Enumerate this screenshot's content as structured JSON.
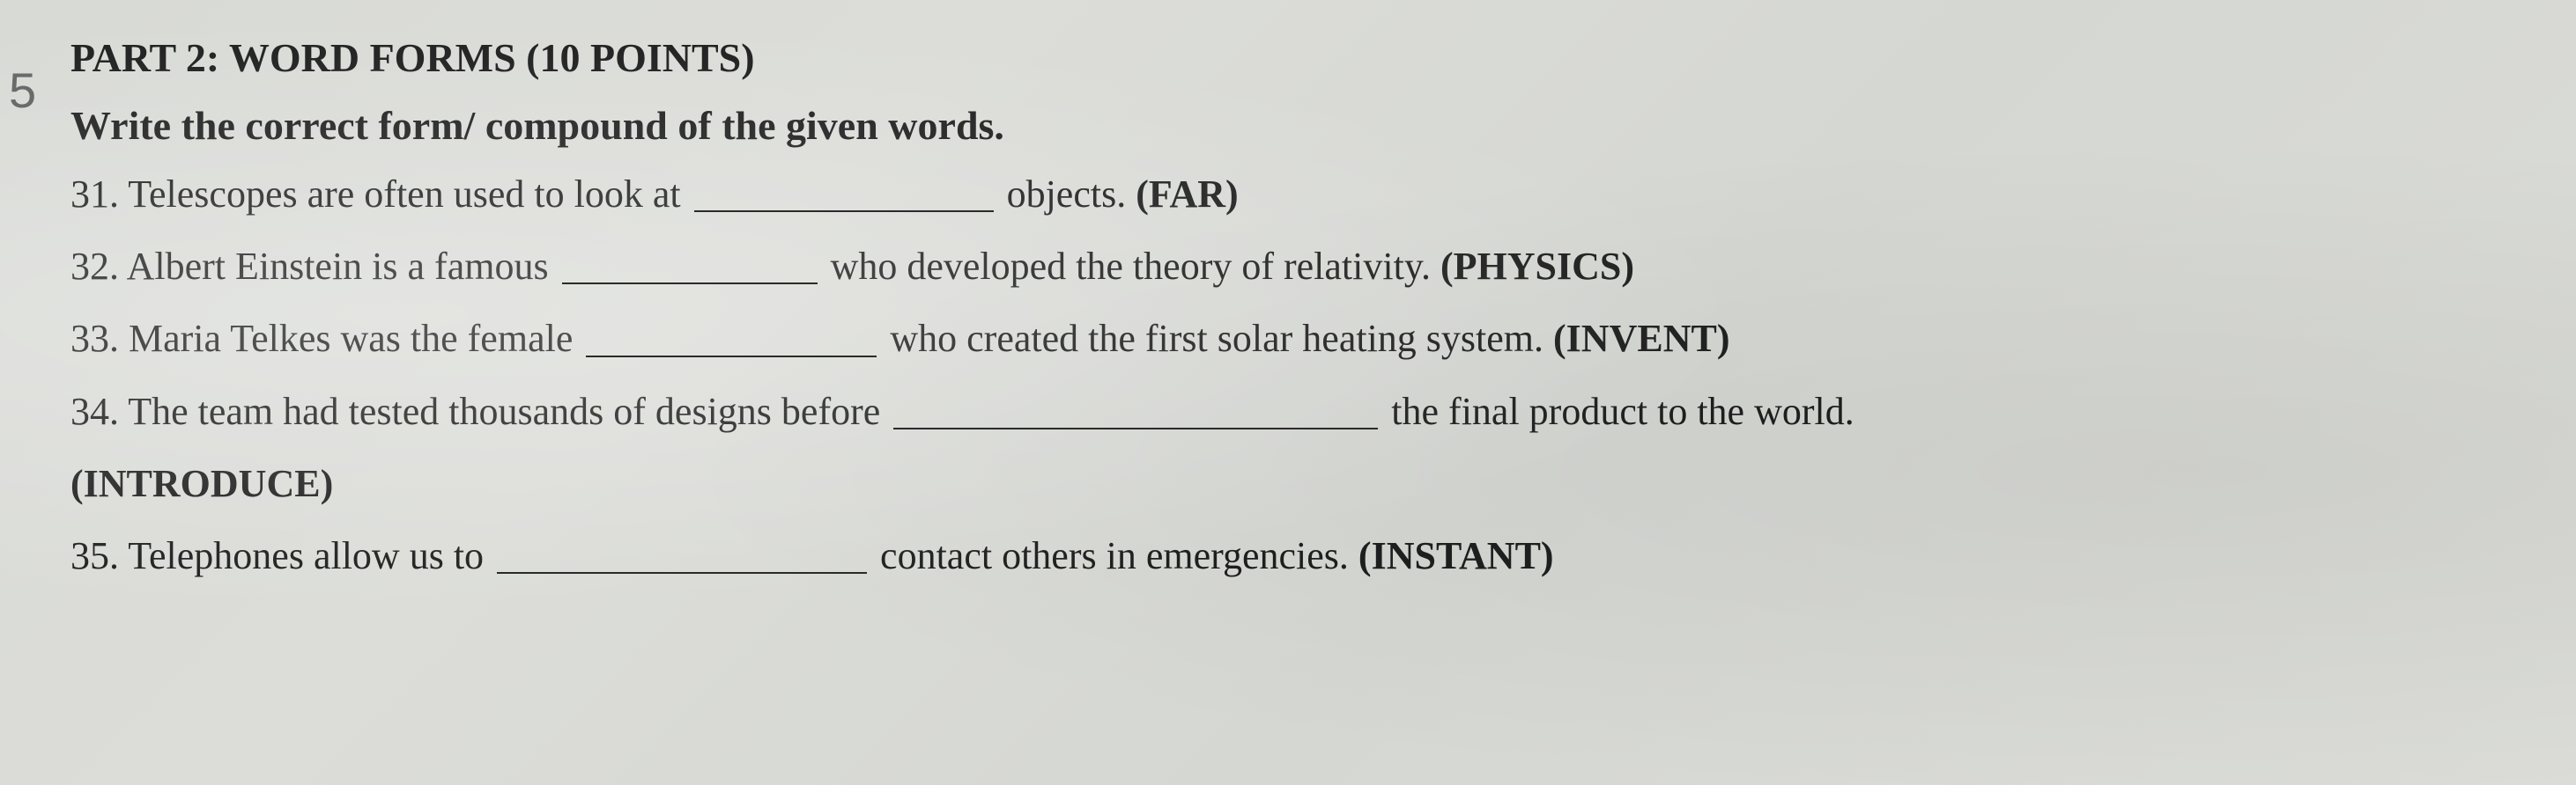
{
  "margin_number": "5",
  "section_title": "PART 2: WORD FORMS (10 POINTS)",
  "instruction": "Write the correct form/ compound of the given words.",
  "questions": [
    {
      "num": "31.",
      "pre": " Telescopes are often used to look at ",
      "blank_width": 340,
      "post": " objects. ",
      "hint": "(FAR)"
    },
    {
      "num": "32.",
      "pre": " Albert Einstein is a famous ",
      "blank_width": 290,
      "post": " who developed the theory of relativity. ",
      "hint": "(PHYSICS)"
    },
    {
      "num": "33.",
      "pre": " Maria Telkes was the female ",
      "blank_width": 330,
      "post": " who created the first solar heating system. ",
      "hint": "(INVENT)"
    },
    {
      "num": "34.",
      "pre": " The team had tested thousands of designs before ",
      "blank_width": 550,
      "post": " the final product to the world.",
      "hint": ""
    },
    {
      "num": "35.",
      "pre": " Telephones allow us to ",
      "blank_width": 420,
      "post": " contact others in emergencies. ",
      "hint": "(INSTANT)"
    }
  ],
  "continuation_hint": "(INTRODUCE)",
  "blank_border_color": "#2a2a2a",
  "text_color": "#1f1f1f",
  "background_colors": [
    "#d8dad6",
    "#dcddd9",
    "#d5d7d3",
    "#dbdcd7"
  ]
}
